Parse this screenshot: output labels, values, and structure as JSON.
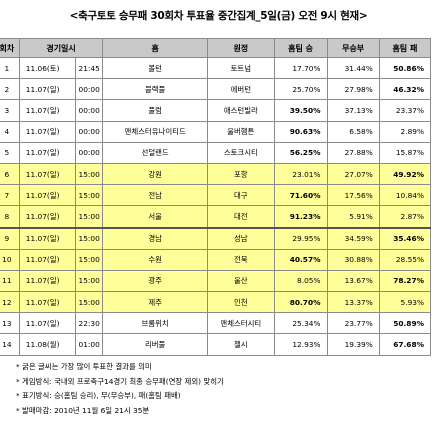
{
  "title": "<축구토토 승무패 30회차 투표율 중간집계_5일(금) 오전 9시 현재>",
  "headers": [
    "회차",
    "경기일시",
    "",
    "홈",
    "원정",
    "홈팀 승",
    "무승부",
    "홈팀 패"
  ],
  "rows": [
    {
      "no": "1",
      "date": "11.06(토)",
      "time": "21:45",
      "home": "볼턴",
      "away": "토트넘",
      "win": "17.70%",
      "draw": "31.44%",
      "lose": "50.86%",
      "bold": "lose",
      "hl": false
    },
    {
      "no": "2",
      "date": "11.07(일)",
      "time": "00:00",
      "home": "블랙풀",
      "away": "에버턴",
      "win": "25.70%",
      "draw": "27.98%",
      "lose": "46.32%",
      "bold": "lose",
      "hl": false
    },
    {
      "no": "3",
      "date": "11.07(일)",
      "time": "00:00",
      "home": "풀럼",
      "away": "애스턴빌라",
      "win": "39.50%",
      "draw": "37.13%",
      "lose": "23.37%",
      "bold": "win",
      "hl": false
    },
    {
      "no": "4",
      "date": "11.07(일)",
      "time": "00:00",
      "home": "맨체스터유나이티드",
      "away": "울버햄튼",
      "win": "90.63%",
      "draw": "6.58%",
      "lose": "2.89%",
      "bold": "win",
      "hl": false
    },
    {
      "no": "5",
      "date": "11.07(일)",
      "time": "00:00",
      "home": "선덜랜드",
      "away": "스토크시티",
      "win": "56.25%",
      "draw": "27.88%",
      "lose": "15.87%",
      "bold": "win",
      "hl": false
    },
    {
      "no": "6",
      "date": "11.07(일)",
      "time": "15:00",
      "home": "강원",
      "away": "포항",
      "win": "23.01%",
      "draw": "27.07%",
      "lose": "49.92%",
      "bold": "lose",
      "hl": true
    },
    {
      "no": "7",
      "date": "11.07(일)",
      "time": "15:00",
      "home": "전남",
      "away": "대구",
      "win": "71.60%",
      "draw": "17.56%",
      "lose": "10.84%",
      "bold": "win",
      "hl": true
    },
    {
      "no": "8",
      "date": "11.07(일)",
      "time": "15:00",
      "home": "서울",
      "away": "대전",
      "win": "91.23%",
      "draw": "5.91%",
      "lose": "2.87%",
      "bold": "win",
      "hl": true
    },
    {
      "no": "9",
      "date": "11.07(일)",
      "time": "15:00",
      "home": "경남",
      "away": "성남",
      "win": "29.95%",
      "draw": "34.59%",
      "lose": "35.46%",
      "bold": "lose",
      "hl": true
    },
    {
      "no": "10",
      "date": "11.07(일)",
      "time": "15:00",
      "home": "수원",
      "away": "전북",
      "win": "40.57%",
      "draw": "30.88%",
      "lose": "28.55%",
      "bold": "win",
      "hl": true
    },
    {
      "no": "11",
      "date": "11.07(일)",
      "time": "15:00",
      "home": "광주",
      "away": "울산",
      "win": "8.05%",
      "draw": "13.67%",
      "lose": "78.27%",
      "bold": "lose",
      "hl": true
    },
    {
      "no": "12",
      "date": "11.07(일)",
      "time": "15:00",
      "home": "제주",
      "away": "인천",
      "win": "80.70%",
      "draw": "13.37%",
      "lose": "5.93%",
      "bold": "win",
      "hl": true
    },
    {
      "no": "13",
      "date": "11.07(일)",
      "time": "22:30",
      "home": "브롬위치",
      "away": "맨체스터시티",
      "win": "25.34%",
      "draw": "23.77%",
      "lose": "50.89%",
      "bold": "lose",
      "hl": false
    },
    {
      "no": "14",
      "date": "11.08(월)",
      "time": "01:00",
      "home": "리버풀",
      "away": "첼시",
      "win": "12.93%",
      "draw": "19.39%",
      "lose": "67.68%",
      "bold": "lose",
      "hl": false
    }
  ],
  "notes": [
    "* 굵은 글씨는 가장 많이 투표한 결과를 의미",
    "* 게임방식: 국내외 프로축구14경기 최종 승무패(연장 제외) 맞히기",
    "* 표기방식: 승(홈팀 승리), 무(무승부), 패(홈팀 패배)",
    "* 발매마감: 2010년 11월 6일 21시 35분"
  ]
}
